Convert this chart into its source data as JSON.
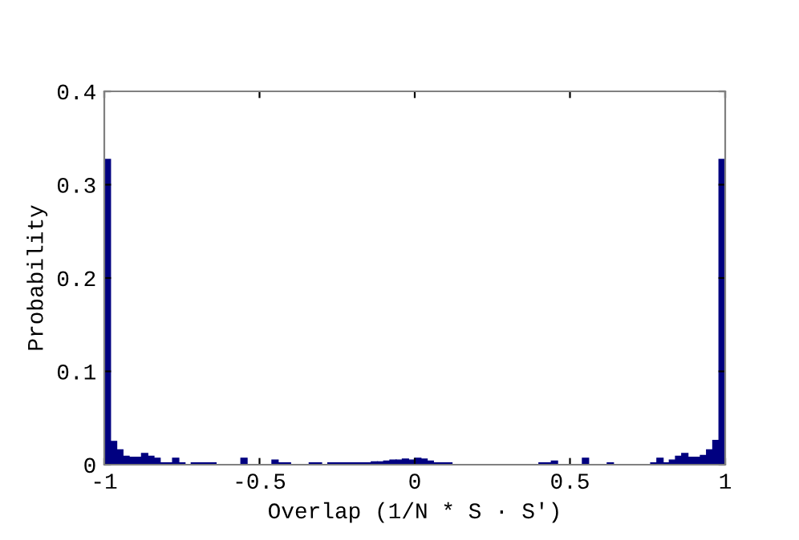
{
  "chart_data": {
    "type": "histogram",
    "xlabel": "Overlap (1/N * S · S′)",
    "ylabel": "Probability",
    "color": "#000080",
    "bins": [
      -1.0,
      -0.98,
      -0.96,
      -0.94,
      -0.92,
      -0.9,
      -0.88,
      -0.86,
      -0.84,
      -0.82,
      -0.8,
      -0.78,
      -0.76,
      -0.74,
      -0.72,
      -0.7,
      -0.68,
      -0.66,
      -0.64,
      -0.62,
      -0.6,
      -0.58,
      -0.56,
      -0.54,
      -0.52,
      -0.5,
      -0.48,
      -0.46,
      -0.44,
      -0.42,
      -0.4,
      -0.38,
      -0.36,
      -0.34,
      -0.32,
      -0.3,
      -0.28,
      -0.26,
      -0.24,
      -0.22,
      -0.2,
      -0.18,
      -0.16,
      -0.14,
      -0.12,
      -0.1,
      -0.08,
      -0.06,
      -0.04,
      -0.02,
      0.0,
      0.02,
      0.04,
      0.06,
      0.08,
      0.1,
      0.12,
      0.14,
      0.16,
      0.18,
      0.2,
      0.22,
      0.24,
      0.26,
      0.28,
      0.3,
      0.32,
      0.34,
      0.36,
      0.38,
      0.4,
      0.42,
      0.44,
      0.46,
      0.48,
      0.5,
      0.52,
      0.54,
      0.56,
      0.58,
      0.6,
      0.62,
      0.64,
      0.66,
      0.68,
      0.7,
      0.72,
      0.74,
      0.76,
      0.78,
      0.8,
      0.82,
      0.84,
      0.86,
      0.88,
      0.9,
      0.92,
      0.94,
      0.96,
      0.98,
      1.0
    ],
    "values": [
      0.327,
      0.025,
      0.016,
      0.009,
      0.008,
      0.008,
      0.012,
      0.009,
      0.007,
      0.002,
      0.002,
      0.007,
      0.002,
      0,
      0.002,
      0.002,
      0.002,
      0.002,
      0,
      0,
      0,
      0,
      0.007,
      0,
      0,
      0,
      0,
      0.005,
      0.002,
      0.002,
      0,
      0,
      0,
      0.002,
      0.002,
      0,
      0.002,
      0.002,
      0.002,
      0.002,
      0.002,
      0.002,
      0.002,
      0.003,
      0.003,
      0.004,
      0.005,
      0.005,
      0.006,
      0.005,
      0.007,
      0.006,
      0.004,
      0.002,
      0.002,
      0.002,
      0,
      0,
      0,
      0,
      0,
      0,
      0,
      0,
      0,
      0,
      0,
      0,
      0,
      0,
      0.002,
      0.002,
      0.004,
      0,
      0,
      0,
      0,
      0.007,
      0,
      0,
      0,
      0.002,
      0,
      0,
      0,
      0,
      0,
      0,
      0.002,
      0.007,
      0.002,
      0.005,
      0.009,
      0.012,
      0.008,
      0.008,
      0.01,
      0.016,
      0.026,
      0.327
    ],
    "xlim": [
      -1,
      1
    ],
    "xticks": [
      -1,
      -0.5,
      0,
      0.5,
      1
    ],
    "ylim": [
      0,
      0.4
    ],
    "yticks": [
      0,
      0.1,
      0.2,
      0.3,
      0.4
    ],
    "grid": false,
    "legend": false
  }
}
